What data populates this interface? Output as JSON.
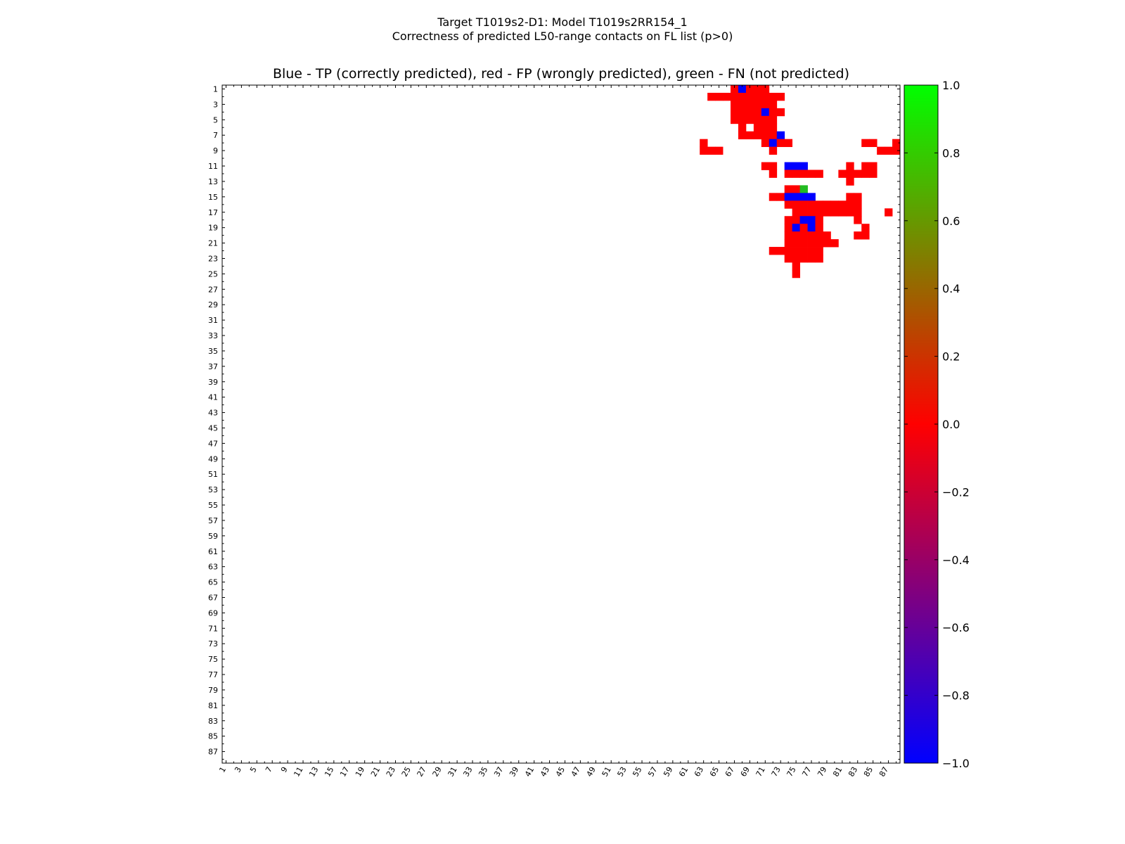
{
  "chart_data": {
    "type": "heatmap",
    "title": "Target T1019s2-D1: Model T1019s2RR154_1",
    "subtitle": "Correctness of predicted L50-range contacts on FL list (p>0)",
    "plot_title": "Blue - TP (correctly predicted), red - FP (wrongly predicted), green - FN (not predicted)",
    "n_residues": 88,
    "x_ticks": [
      "1",
      "3",
      "5",
      "7",
      "9",
      "11",
      "13",
      "15",
      "17",
      "19",
      "21",
      "23",
      "25",
      "27",
      "29",
      "31",
      "33",
      "35",
      "37",
      "39",
      "41",
      "43",
      "45",
      "47",
      "49",
      "51",
      "53",
      "55",
      "57",
      "59",
      "61",
      "63",
      "65",
      "67",
      "69",
      "71",
      "73",
      "75",
      "77",
      "79",
      "81",
      "83",
      "85",
      "87"
    ],
    "y_ticks": [
      "1",
      "3",
      "5",
      "7",
      "9",
      "11",
      "13",
      "15",
      "17",
      "19",
      "21",
      "23",
      "25",
      "27",
      "29",
      "31",
      "33",
      "35",
      "37",
      "39",
      "41",
      "43",
      "45",
      "47",
      "49",
      "51",
      "53",
      "55",
      "57",
      "59",
      "61",
      "63",
      "65",
      "67",
      "69",
      "71",
      "73",
      "75",
      "77",
      "79",
      "81",
      "83",
      "85",
      "87"
    ],
    "colorbar": {
      "min": -1.0,
      "max": 1.0,
      "ticks": [
        "1.0",
        "0.8",
        "0.6",
        "0.4",
        "0.2",
        "0.0",
        "−0.2",
        "−0.4",
        "−0.6",
        "−0.8",
        "−1.0"
      ],
      "colors": [
        "#0000ff",
        "#ff0000",
        "#00ff00"
      ]
    },
    "colors": {
      "TP": "#0000ff",
      "FP": "#ff0000",
      "FN": "#22bb22"
    },
    "legend": {
      "TP": "correctly predicted",
      "FP": "wrongly predicted",
      "FN": "not predicted"
    },
    "cells": [
      [
        1,
        67,
        "FP"
      ],
      [
        1,
        68,
        "TP"
      ],
      [
        1,
        69,
        "FP"
      ],
      [
        1,
        70,
        "FP"
      ],
      [
        1,
        71,
        "FP"
      ],
      [
        2,
        64,
        "FP"
      ],
      [
        2,
        65,
        "FP"
      ],
      [
        2,
        66,
        "FP"
      ],
      [
        2,
        67,
        "FP"
      ],
      [
        2,
        68,
        "FP"
      ],
      [
        2,
        69,
        "FP"
      ],
      [
        2,
        70,
        "FP"
      ],
      [
        2,
        71,
        "FP"
      ],
      [
        2,
        72,
        "FP"
      ],
      [
        2,
        73,
        "FP"
      ],
      [
        3,
        67,
        "FP"
      ],
      [
        3,
        68,
        "FP"
      ],
      [
        3,
        69,
        "FP"
      ],
      [
        3,
        70,
        "FP"
      ],
      [
        3,
        71,
        "FP"
      ],
      [
        3,
        72,
        "FP"
      ],
      [
        4,
        67,
        "FP"
      ],
      [
        4,
        68,
        "FP"
      ],
      [
        4,
        69,
        "FP"
      ],
      [
        4,
        70,
        "FP"
      ],
      [
        4,
        71,
        "TP"
      ],
      [
        4,
        72,
        "FP"
      ],
      [
        4,
        73,
        "FP"
      ],
      [
        5,
        67,
        "FP"
      ],
      [
        5,
        68,
        "FP"
      ],
      [
        5,
        69,
        "FP"
      ],
      [
        5,
        70,
        "FP"
      ],
      [
        5,
        71,
        "FP"
      ],
      [
        5,
        72,
        "FP"
      ],
      [
        6,
        68,
        "FP"
      ],
      [
        6,
        70,
        "FP"
      ],
      [
        6,
        71,
        "FP"
      ],
      [
        6,
        72,
        "FP"
      ],
      [
        7,
        68,
        "FP"
      ],
      [
        7,
        69,
        "FP"
      ],
      [
        7,
        70,
        "FP"
      ],
      [
        7,
        71,
        "FP"
      ],
      [
        7,
        72,
        "FP"
      ],
      [
        7,
        73,
        "TP"
      ],
      [
        8,
        63,
        "FP"
      ],
      [
        8,
        71,
        "FP"
      ],
      [
        8,
        72,
        "TP"
      ],
      [
        8,
        73,
        "FP"
      ],
      [
        8,
        74,
        "FP"
      ],
      [
        8,
        84,
        "FP"
      ],
      [
        8,
        85,
        "FP"
      ],
      [
        8,
        88,
        "FP"
      ],
      [
        9,
        63,
        "FP"
      ],
      [
        9,
        64,
        "FP"
      ],
      [
        9,
        65,
        "FP"
      ],
      [
        9,
        72,
        "FP"
      ],
      [
        9,
        86,
        "FP"
      ],
      [
        9,
        87,
        "FP"
      ],
      [
        9,
        88,
        "FP"
      ],
      [
        11,
        71,
        "FP"
      ],
      [
        11,
        72,
        "FP"
      ],
      [
        11,
        74,
        "TP"
      ],
      [
        11,
        75,
        "TP"
      ],
      [
        11,
        76,
        "TP"
      ],
      [
        11,
        82,
        "FP"
      ],
      [
        11,
        84,
        "FP"
      ],
      [
        11,
        85,
        "FP"
      ],
      [
        12,
        72,
        "FP"
      ],
      [
        12,
        74,
        "FP"
      ],
      [
        12,
        75,
        "FP"
      ],
      [
        12,
        76,
        "FP"
      ],
      [
        12,
        77,
        "FP"
      ],
      [
        12,
        78,
        "FP"
      ],
      [
        12,
        81,
        "FP"
      ],
      [
        12,
        82,
        "FP"
      ],
      [
        12,
        83,
        "FP"
      ],
      [
        12,
        84,
        "FP"
      ],
      [
        12,
        85,
        "FP"
      ],
      [
        13,
        82,
        "FP"
      ],
      [
        14,
        74,
        "FP"
      ],
      [
        14,
        75,
        "FP"
      ],
      [
        14,
        76,
        "FN"
      ],
      [
        15,
        72,
        "FP"
      ],
      [
        15,
        73,
        "FP"
      ],
      [
        15,
        74,
        "TP"
      ],
      [
        15,
        75,
        "TP"
      ],
      [
        15,
        76,
        "TP"
      ],
      [
        15,
        77,
        "TP"
      ],
      [
        15,
        82,
        "FP"
      ],
      [
        15,
        83,
        "FP"
      ],
      [
        16,
        74,
        "FP"
      ],
      [
        16,
        75,
        "FP"
      ],
      [
        16,
        76,
        "FP"
      ],
      [
        16,
        77,
        "FP"
      ],
      [
        16,
        78,
        "FP"
      ],
      [
        16,
        79,
        "FP"
      ],
      [
        16,
        80,
        "FP"
      ],
      [
        16,
        81,
        "FP"
      ],
      [
        16,
        82,
        "FP"
      ],
      [
        16,
        83,
        "FP"
      ],
      [
        17,
        75,
        "FP"
      ],
      [
        17,
        76,
        "FP"
      ],
      [
        17,
        77,
        "FP"
      ],
      [
        17,
        78,
        "FP"
      ],
      [
        17,
        79,
        "FP"
      ],
      [
        17,
        80,
        "FP"
      ],
      [
        17,
        81,
        "FP"
      ],
      [
        17,
        82,
        "FP"
      ],
      [
        17,
        83,
        "FP"
      ],
      [
        17,
        87,
        "FP"
      ],
      [
        18,
        74,
        "FP"
      ],
      [
        18,
        75,
        "FP"
      ],
      [
        18,
        76,
        "TP"
      ],
      [
        18,
        77,
        "TP"
      ],
      [
        18,
        78,
        "FP"
      ],
      [
        18,
        83,
        "FP"
      ],
      [
        19,
        74,
        "FP"
      ],
      [
        19,
        75,
        "TP"
      ],
      [
        19,
        76,
        "FP"
      ],
      [
        19,
        77,
        "TP"
      ],
      [
        19,
        78,
        "FP"
      ],
      [
        19,
        84,
        "FP"
      ],
      [
        20,
        74,
        "FP"
      ],
      [
        20,
        75,
        "FP"
      ],
      [
        20,
        76,
        "FP"
      ],
      [
        20,
        77,
        "FP"
      ],
      [
        20,
        78,
        "FP"
      ],
      [
        20,
        79,
        "FP"
      ],
      [
        20,
        83,
        "FP"
      ],
      [
        20,
        84,
        "FP"
      ],
      [
        21,
        74,
        "FP"
      ],
      [
        21,
        75,
        "FP"
      ],
      [
        21,
        76,
        "FP"
      ],
      [
        21,
        77,
        "FP"
      ],
      [
        21,
        78,
        "FP"
      ],
      [
        21,
        79,
        "FP"
      ],
      [
        21,
        80,
        "FP"
      ],
      [
        22,
        72,
        "FP"
      ],
      [
        22,
        73,
        "FP"
      ],
      [
        22,
        74,
        "FP"
      ],
      [
        22,
        75,
        "FP"
      ],
      [
        22,
        76,
        "FP"
      ],
      [
        22,
        77,
        "FP"
      ],
      [
        22,
        78,
        "FP"
      ],
      [
        23,
        74,
        "FP"
      ],
      [
        23,
        75,
        "FP"
      ],
      [
        23,
        76,
        "FP"
      ],
      [
        23,
        77,
        "FP"
      ],
      [
        23,
        78,
        "FP"
      ],
      [
        24,
        75,
        "FP"
      ],
      [
        25,
        75,
        "FP"
      ]
    ]
  }
}
